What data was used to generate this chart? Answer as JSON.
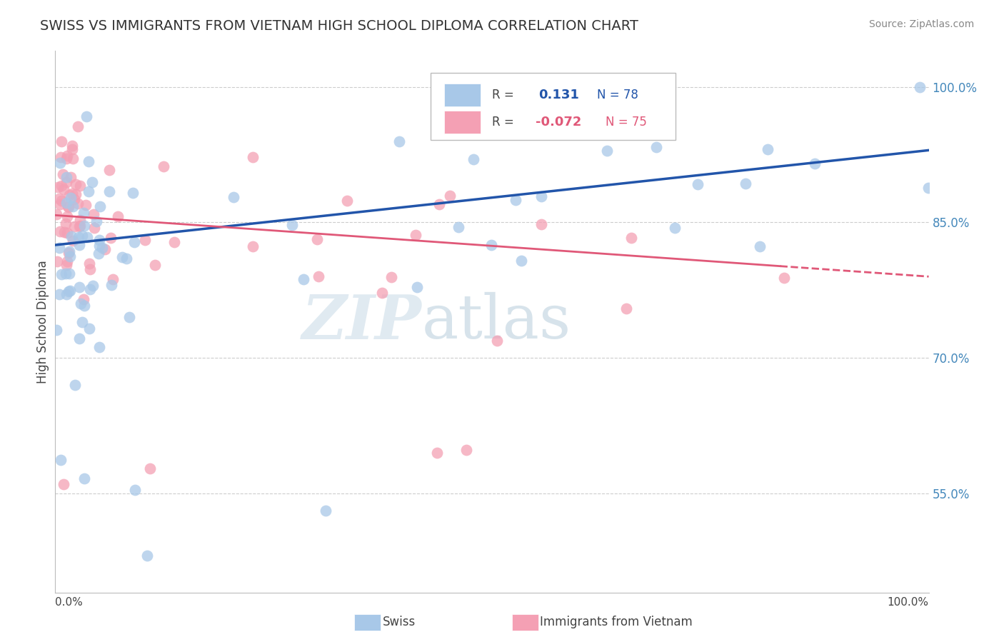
{
  "title": "SWISS VS IMMIGRANTS FROM VIETNAM HIGH SCHOOL DIPLOMA CORRELATION CHART",
  "source": "Source: ZipAtlas.com",
  "ylabel": "High School Diploma",
  "xlim": [
    0.0,
    1.0
  ],
  "ylim": [
    0.44,
    1.04
  ],
  "yticks": [
    0.55,
    0.7,
    0.85,
    1.0
  ],
  "ytick_labels": [
    "55.0%",
    "70.0%",
    "85.0%",
    "100.0%"
  ],
  "swiss_color": "#a8c8e8",
  "viet_color": "#f4a0b4",
  "swiss_line_color": "#2255aa",
  "viet_line_color": "#e05878",
  "background_color": "#ffffff",
  "grid_color": "#cccccc",
  "watermark_zip_color": "#c8dce8",
  "watermark_atlas_color": "#b0cce0",
  "swiss_line_start_y": 0.825,
  "swiss_line_end_y": 0.93,
  "viet_line_start_y": 0.858,
  "viet_line_solid_end_x": 0.83,
  "viet_line_end_y": 0.79
}
